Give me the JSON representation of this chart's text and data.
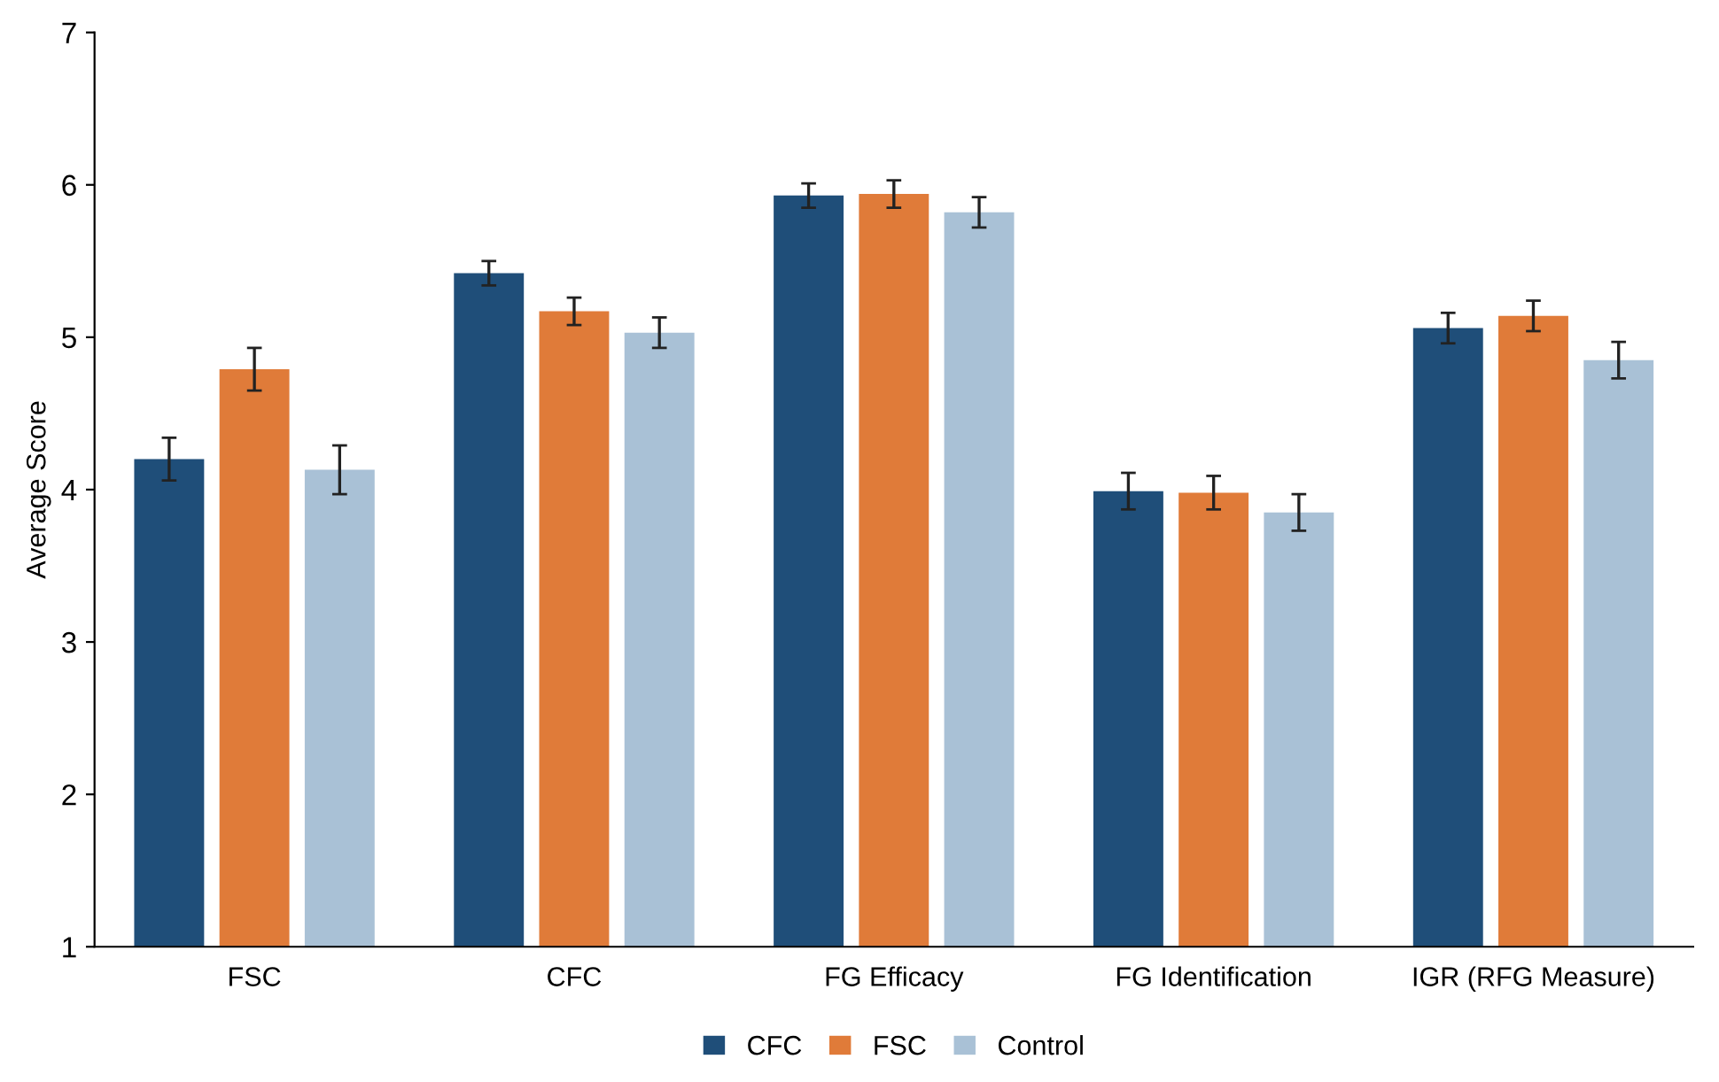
{
  "chart_data": {
    "type": "bar",
    "ylabel": "Average Score",
    "categories": [
      "FSC",
      "CFC",
      "FG Efficacy",
      "FG Identification",
      "IGR (RFG Measure)"
    ],
    "series": [
      {
        "name": "CFC",
        "color": "#1f4e79",
        "values": [
          4.2,
          5.42,
          5.93,
          3.99,
          5.06
        ],
        "errors": [
          0.14,
          0.08,
          0.08,
          0.12,
          0.1
        ]
      },
      {
        "name": "FSC",
        "color": "#e07b39",
        "values": [
          4.79,
          5.17,
          5.94,
          3.98,
          5.14
        ],
        "errors": [
          0.14,
          0.09,
          0.09,
          0.11,
          0.1
        ]
      },
      {
        "name": "Control",
        "color": "#a9c1d6",
        "values": [
          4.13,
          5.03,
          5.82,
          3.85,
          4.85
        ],
        "errors": [
          0.16,
          0.1,
          0.1,
          0.12,
          0.12
        ]
      }
    ],
    "ylim": [
      1,
      7
    ],
    "yticks": [
      1,
      2,
      3,
      4,
      5,
      6,
      7
    ],
    "grid": false,
    "legend": "bottom"
  }
}
